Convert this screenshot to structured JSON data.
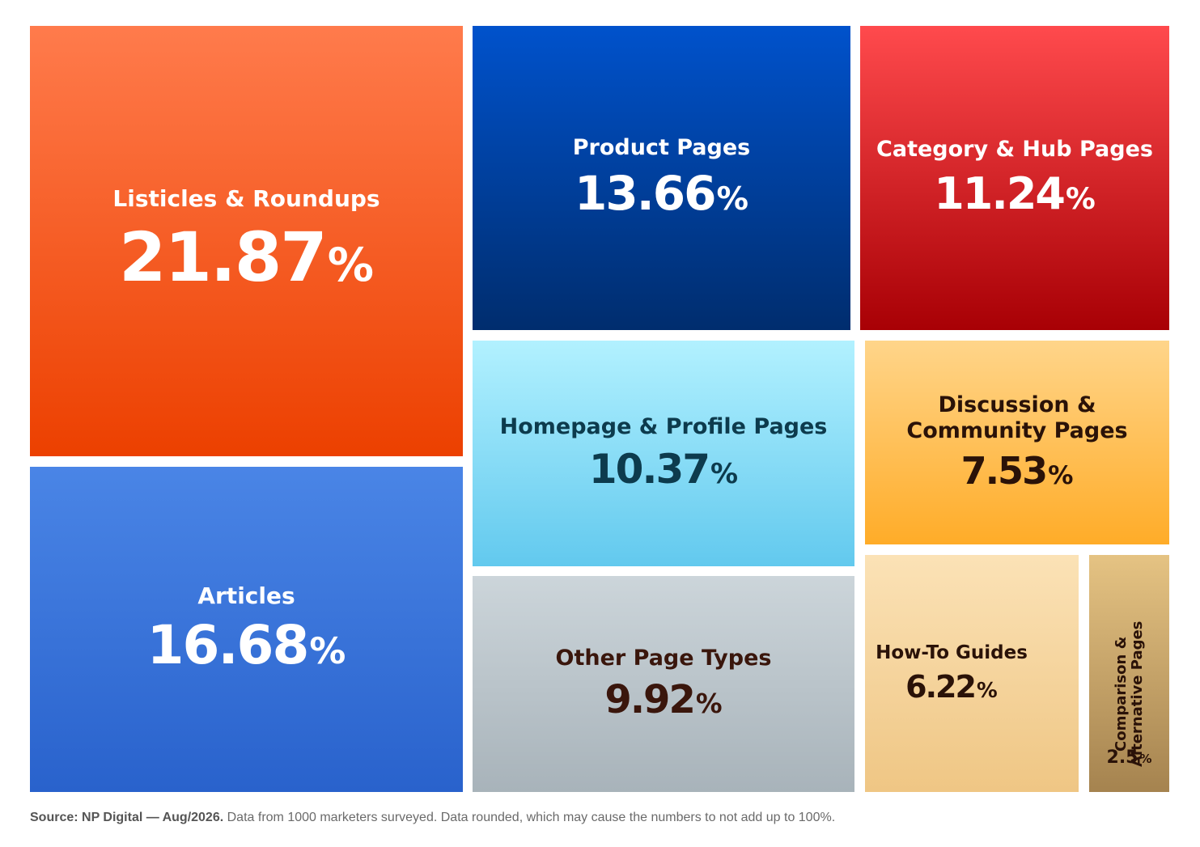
{
  "chart_data": {
    "type": "treemap",
    "items": [
      {
        "label": "Listicles & Roundups",
        "value": 21.87,
        "display": "21.87",
        "color_top": "#ff7b4c",
        "color_bottom": "#ec4000",
        "text_color": "#ffffff"
      },
      {
        "label": "Articles",
        "value": 16.68,
        "display": "16.68",
        "color_top": "#4a85e6",
        "color_bottom": "#2962cc",
        "text_color": "#ffffff"
      },
      {
        "label": "Product Pages",
        "value": 13.66,
        "display": "13.66",
        "color_top": "#0052cc",
        "color_bottom": "#002d6e",
        "text_color": "#ffffff"
      },
      {
        "label": "Category & Hub Pages",
        "value": 11.24,
        "display": "11.24",
        "color_top": "#ff4a4d",
        "color_bottom": "#a80005",
        "text_color": "#ffffff"
      },
      {
        "label": "Homepage & Profile Pages",
        "value": 10.37,
        "display": "10.37",
        "color_top": "#b2f1ff",
        "color_bottom": "#62c9ee",
        "text_color": "#0d3b4d"
      },
      {
        "label": "Other Page Types",
        "value": 9.92,
        "display": "9.92",
        "color_top": "#ccd5da",
        "color_bottom": "#a8b3ba",
        "text_color": "#3a160c"
      },
      {
        "label": "Discussion & Community Pages",
        "value": 7.53,
        "display": "7.53",
        "color_top": "#ffd58a",
        "color_bottom": "#ffac28",
        "text_color": "#2a1208"
      },
      {
        "label": "How-To Guides",
        "value": 6.22,
        "display": "6.22",
        "color_top": "#fbe2b6",
        "color_bottom": "#efc684",
        "text_color": "#2a1208"
      },
      {
        "label": "Comparison & Alternative Pages",
        "value": 2.5,
        "display": "2.5",
        "color_top": "#e5c383",
        "color_bottom": "#a5834f",
        "text_color": "#2a1208"
      }
    ]
  },
  "footer": {
    "source": "Source: NP Digital — Aug/2026.",
    "note": "Data from 1000 marketers surveyed. Data rounded, which may cause the numbers to not add up to 100%."
  }
}
